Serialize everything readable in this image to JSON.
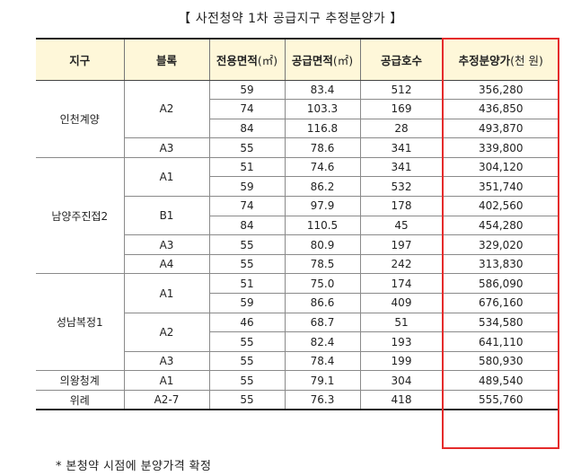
{
  "title": "【 사전청약 1차 공급지구 추정분양가 】",
  "headers": {
    "district": "지구",
    "block": "블록",
    "exclusive_area": "전용면적",
    "exclusive_unit": "(㎡)",
    "supply_area": "공급면적",
    "supply_unit": "(㎡)",
    "units": "공급호수",
    "price": "추정분양가",
    "price_unit": "(천 원)"
  },
  "districts": [
    "인천계양",
    "남양주진접2",
    "성남복정1",
    "의왕청계",
    "위례"
  ],
  "blocks": [
    "A2",
    "A3",
    "A1",
    "B1",
    "A3",
    "A4",
    "A1",
    "A2",
    "A3",
    "A1",
    "A2-7"
  ],
  "rows": [
    {
      "area": "59",
      "supply": "83.4",
      "units": "512",
      "price": "356,280"
    },
    {
      "area": "74",
      "supply": "103.3",
      "units": "169",
      "price": "436,850"
    },
    {
      "area": "84",
      "supply": "116.8",
      "units": "28",
      "price": "493,870"
    },
    {
      "area": "55",
      "supply": "78.6",
      "units": "341",
      "price": "339,800"
    },
    {
      "area": "51",
      "supply": "74.6",
      "units": "341",
      "price": "304,120"
    },
    {
      "area": "59",
      "supply": "86.2",
      "units": "532",
      "price": "351,740"
    },
    {
      "area": "74",
      "supply": "97.9",
      "units": "178",
      "price": "402,560"
    },
    {
      "area": "84",
      "supply": "110.5",
      "units": "45",
      "price": "454,280"
    },
    {
      "area": "55",
      "supply": "80.9",
      "units": "197",
      "price": "329,020"
    },
    {
      "area": "55",
      "supply": "78.5",
      "units": "242",
      "price": "313,830"
    },
    {
      "area": "51",
      "supply": "75.0",
      "units": "174",
      "price": "586,090"
    },
    {
      "area": "59",
      "supply": "86.6",
      "units": "409",
      "price": "676,160"
    },
    {
      "area": "46",
      "supply": "68.7",
      "units": "51",
      "price": "534,580"
    },
    {
      "area": "55",
      "supply": "82.4",
      "units": "193",
      "price": "641,110"
    },
    {
      "area": "55",
      "supply": "78.4",
      "units": "199",
      "price": "580,930"
    },
    {
      "area": "55",
      "supply": "79.1",
      "units": "304",
      "price": "489,540"
    },
    {
      "area": "55",
      "supply": "76.3",
      "units": "418",
      "price": "555,760"
    }
  ],
  "footnote": "* 본청약 시점에 분양가격 확정",
  "colors": {
    "header_bg": "#fef7d9",
    "highlight_border": "#e52b2b"
  }
}
